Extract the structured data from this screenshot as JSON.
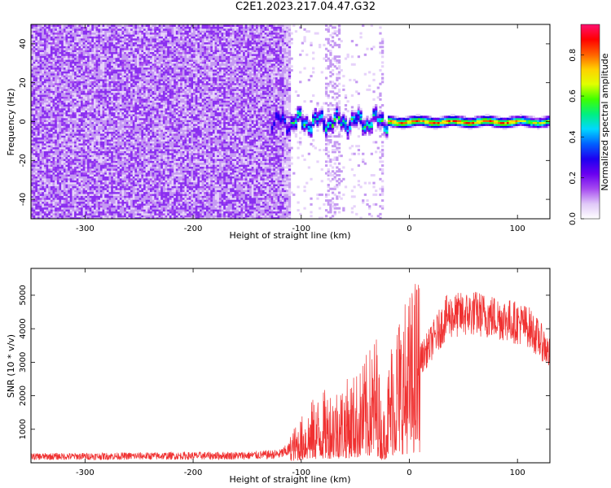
{
  "title": "C2E1.2023.217.04.47.G32",
  "chart_data": [
    {
      "type": "heatmap",
      "xlabel": "Height of straight line (km)",
      "ylabel": "Frequency (Hz)",
      "xlim": [
        -350,
        130
      ],
      "ylim": [
        -50,
        50
      ],
      "xticks": [
        -300,
        -200,
        -100,
        0,
        100
      ],
      "yticks": [
        -40,
        -20,
        0,
        20,
        40
      ],
      "colorbar": {
        "label": "Normalized spectral amplitude",
        "ticks": [
          0.0,
          0.2,
          0.4,
          0.6,
          0.8
        ],
        "range": [
          0,
          0.95
        ],
        "colormap": [
          "#ffffff",
          "#e0c8f8",
          "#a64bf0",
          "#6a00f0",
          "#1e00f0",
          "#0060ff",
          "#00d8ff",
          "#00f080",
          "#40ff00",
          "#e0ff00",
          "#ffd000",
          "#ff6000",
          "#ff0000",
          "#ff1070"
        ]
      },
      "description_values": {
        "noise_region_km": [
          -350,
          -110
        ],
        "sparse_region_km": [
          -110,
          -25
        ],
        "signal_center_hz": 0,
        "signal_start_km": -130
      }
    },
    {
      "type": "line",
      "xlabel": "Height of straight line (km)",
      "ylabel": "SNR (10 * v/v)",
      "xlim": [
        -350,
        130
      ],
      "ylim": [
        0,
        5800
      ],
      "xticks": [
        -300,
        -200,
        -100,
        0,
        100
      ],
      "yticks": [
        1000,
        2000,
        3000,
        4000,
        5000
      ],
      "series_color": "#f03030",
      "envelope": {
        "x": [
          -350,
          -300,
          -200,
          -150,
          -120,
          -105,
          -90,
          -75,
          -60,
          -45,
          -30,
          -25,
          -15,
          0,
          15,
          35,
          60,
          90,
          110,
          125,
          130
        ],
        "y": [
          230,
          240,
          260,
          270,
          320,
          600,
          1000,
          1200,
          1300,
          1500,
          2100,
          700,
          2300,
          2700,
          3400,
          4500,
          4600,
          4400,
          4200,
          3600,
          3300
        ]
      }
    }
  ]
}
